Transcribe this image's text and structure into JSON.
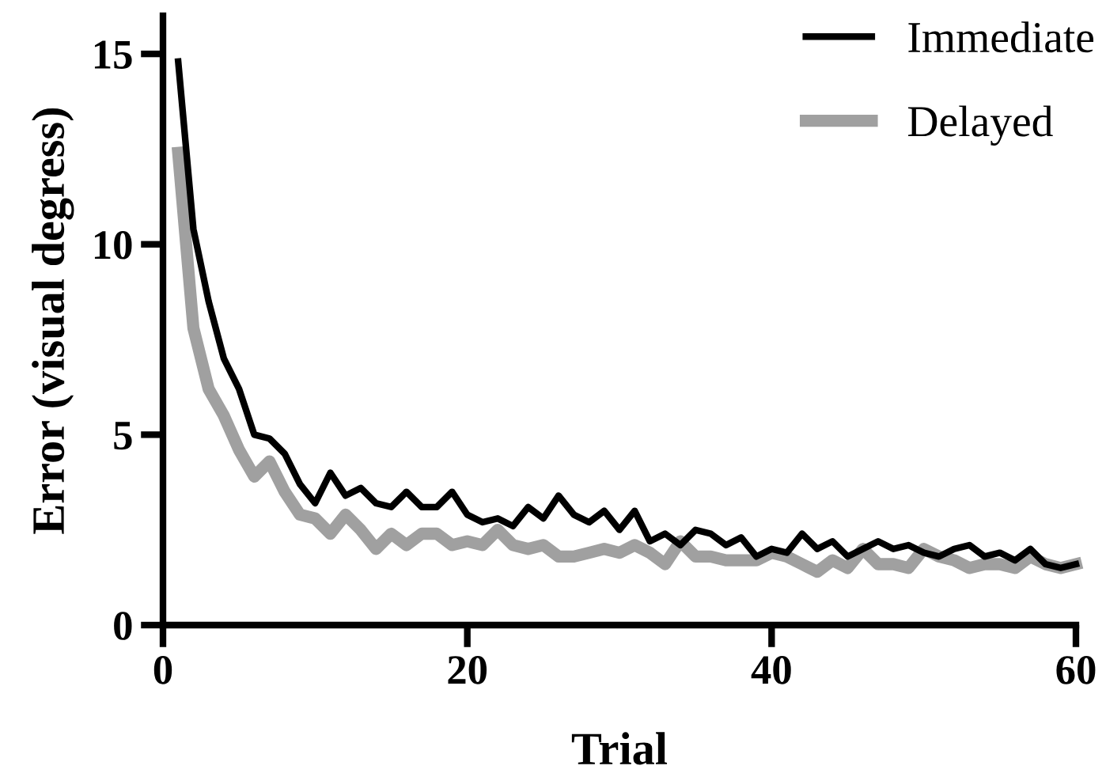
{
  "chart_data": {
    "type": "line",
    "xlabel": "Trial",
    "ylabel": "Error (visual degress)",
    "x": [
      1,
      2,
      3,
      4,
      5,
      6,
      7,
      8,
      9,
      10,
      11,
      12,
      13,
      14,
      15,
      16,
      17,
      18,
      19,
      20,
      21,
      22,
      23,
      24,
      25,
      26,
      27,
      28,
      29,
      30,
      31,
      32,
      33,
      34,
      35,
      36,
      37,
      38,
      39,
      40,
      41,
      42,
      43,
      44,
      45,
      46,
      47,
      48,
      49,
      50,
      51,
      52,
      53,
      54,
      55,
      56,
      57,
      58,
      59,
      60
    ],
    "series": [
      {
        "name": "Immediate",
        "color": "#000000",
        "values": [
          14.8,
          10.4,
          8.5,
          7.0,
          6.2,
          5.0,
          4.9,
          4.5,
          3.7,
          3.2,
          4.0,
          3.4,
          3.6,
          3.2,
          3.1,
          3.5,
          3.1,
          3.1,
          3.5,
          2.9,
          2.7,
          2.8,
          2.6,
          3.1,
          2.8,
          3.4,
          2.9,
          2.7,
          3.0,
          2.5,
          3.0,
          2.2,
          2.4,
          2.1,
          2.5,
          2.4,
          2.1,
          2.3,
          1.8,
          2.0,
          1.9,
          2.4,
          2.0,
          2.2,
          1.8,
          2.0,
          2.2,
          2.0,
          2.1,
          1.9,
          1.8,
          2.0,
          2.1,
          1.8,
          1.9,
          1.7,
          2.0,
          1.6,
          1.5,
          1.6
        ]
      },
      {
        "name": "Delayed",
        "color": "#a0a0a0",
        "values": [
          12.4,
          7.8,
          6.2,
          5.5,
          4.6,
          3.9,
          4.3,
          3.5,
          2.9,
          2.8,
          2.4,
          2.9,
          2.5,
          2.0,
          2.4,
          2.1,
          2.4,
          2.4,
          2.1,
          2.2,
          2.1,
          2.5,
          2.1,
          2.0,
          2.1,
          1.8,
          1.8,
          1.9,
          2.0,
          1.9,
          2.1,
          1.9,
          1.6,
          2.2,
          1.8,
          1.8,
          1.7,
          1.7,
          1.7,
          1.9,
          1.8,
          1.6,
          1.4,
          1.7,
          1.5,
          2.0,
          1.6,
          1.6,
          1.5,
          2.0,
          1.8,
          1.7,
          1.5,
          1.6,
          1.6,
          1.5,
          1.8,
          1.6,
          1.5,
          1.6
        ]
      }
    ],
    "xlim": [
      0,
      60
    ],
    "ylim": [
      0,
      16
    ],
    "xticks": [
      0,
      20,
      40,
      60
    ],
    "yticks": [
      0,
      5,
      10,
      15
    ],
    "grid": false,
    "legend": "top right",
    "marker": "none",
    "line_style": "solid"
  }
}
